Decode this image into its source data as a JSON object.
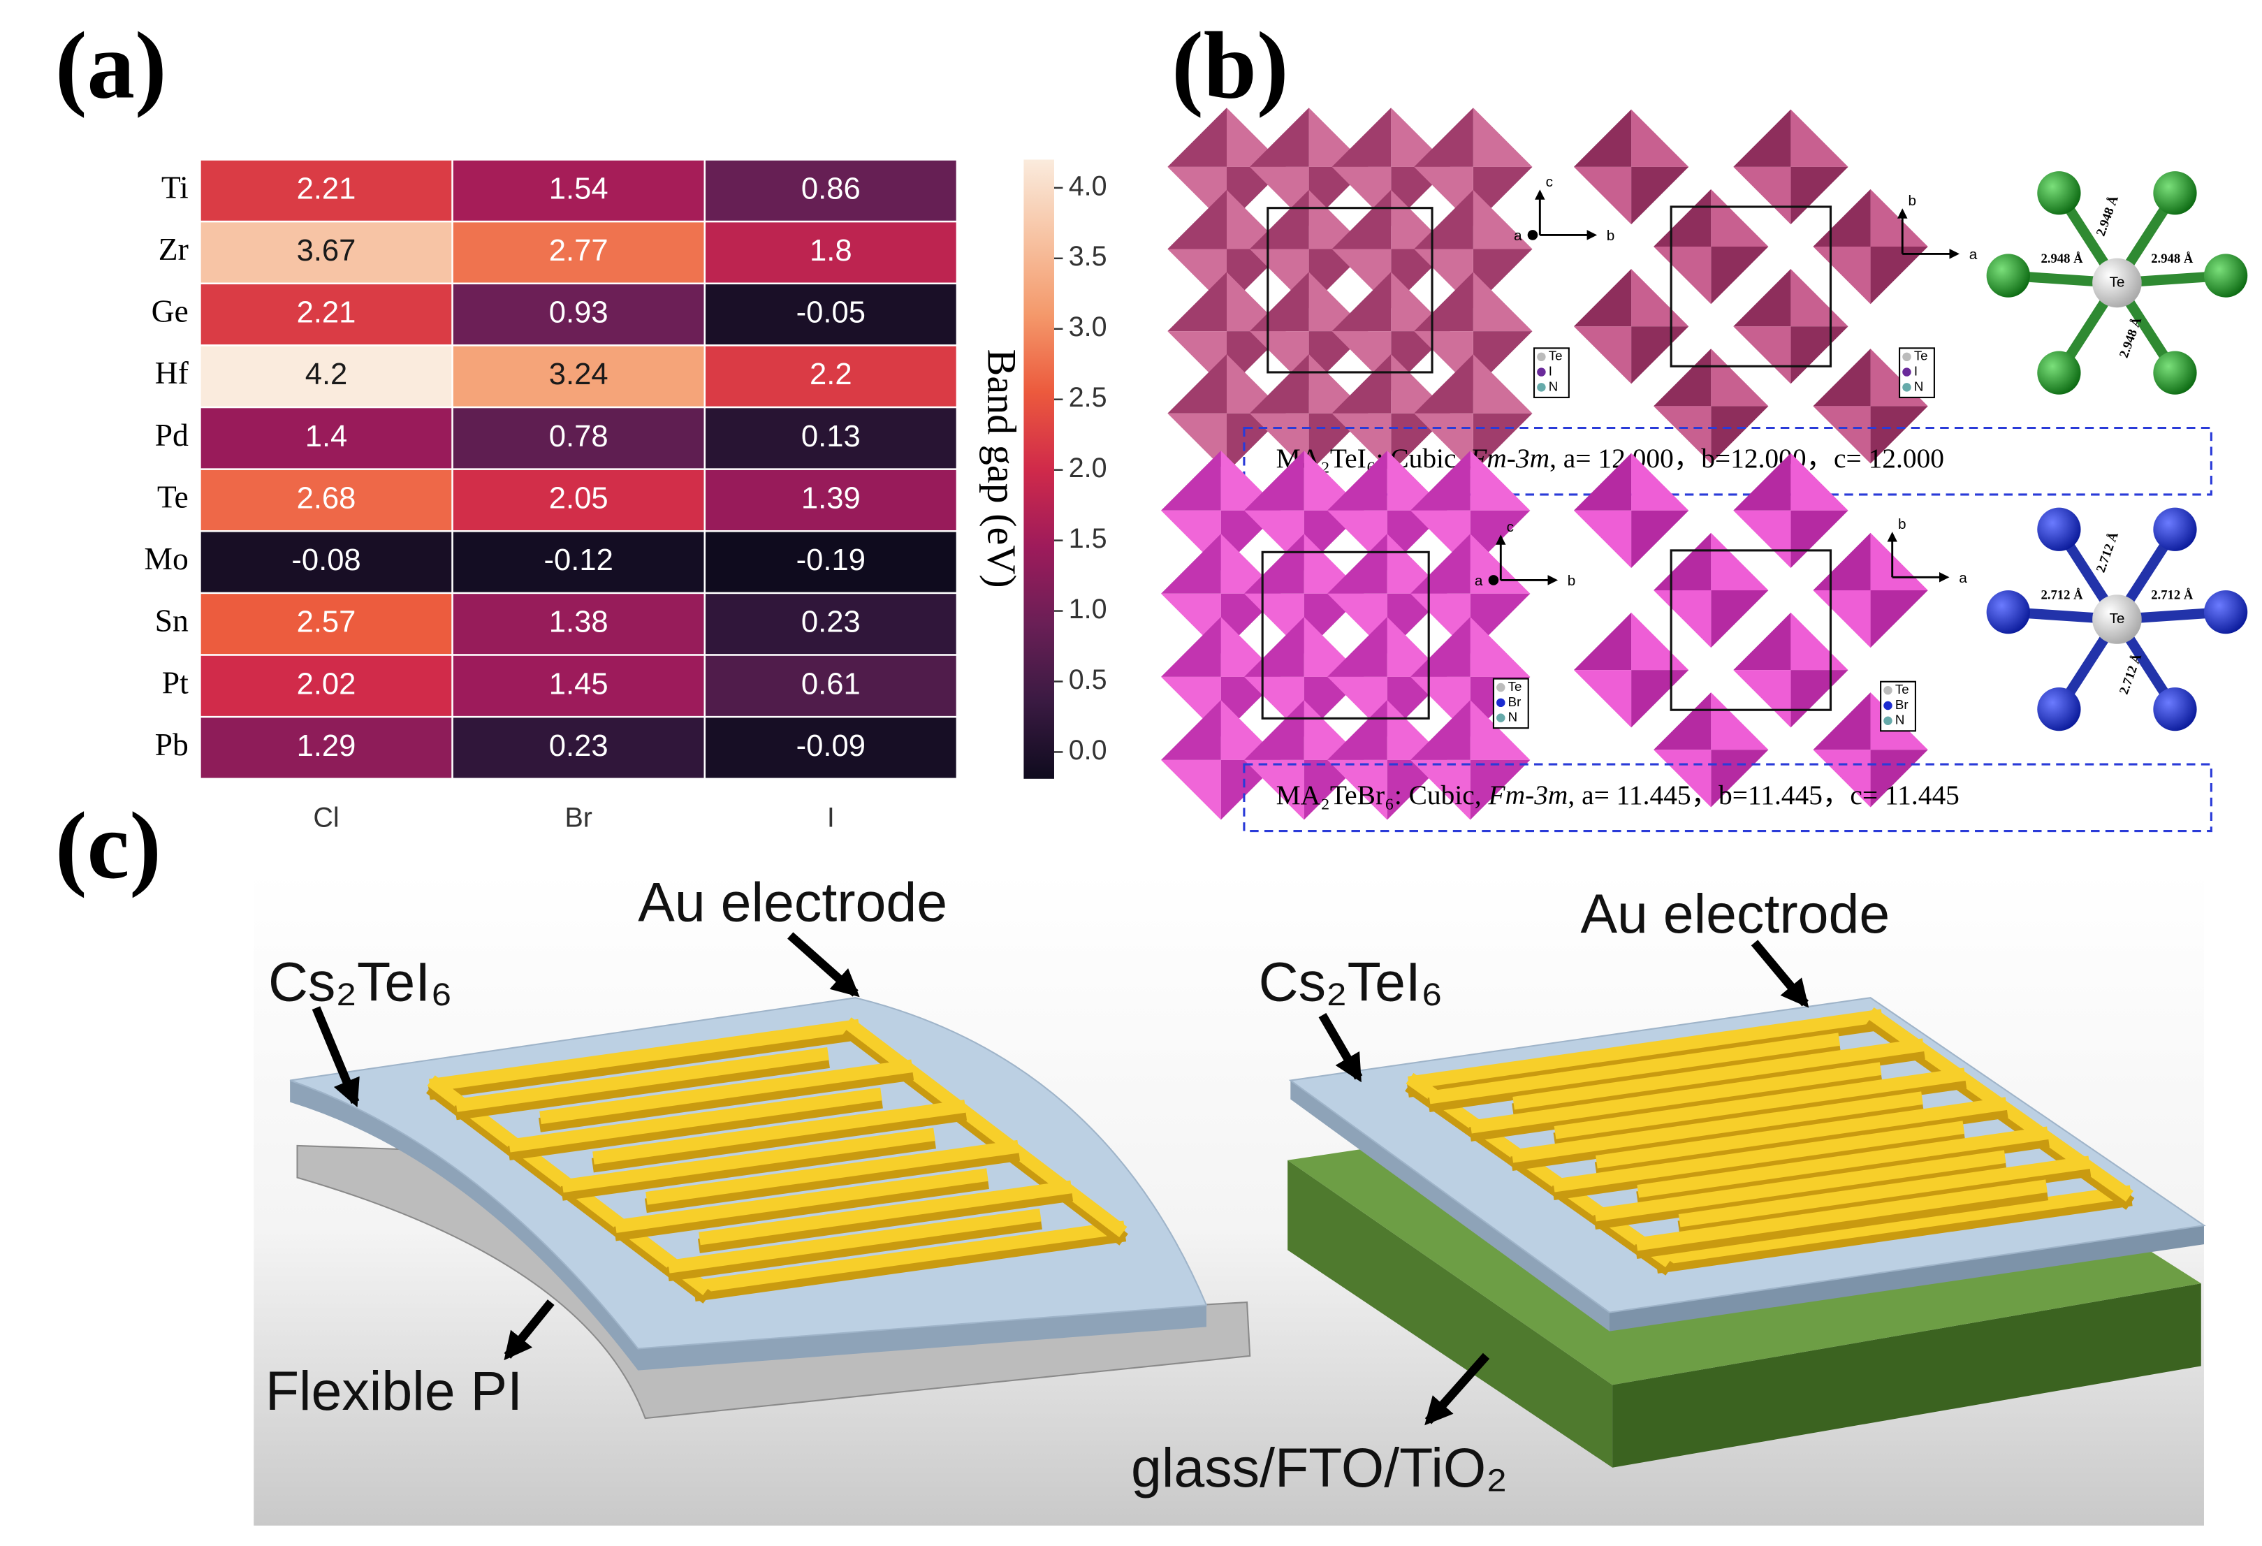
{
  "panel_labels": [
    "(a)",
    "(b)",
    "(c)"
  ],
  "chart_data": {
    "type": "heatmap",
    "rows": [
      "Ti",
      "Zr",
      "Ge",
      "Hf",
      "Pd",
      "Te",
      "Mo",
      "Sn",
      "Pt",
      "Pb"
    ],
    "columns": [
      "Cl",
      "Br",
      "I"
    ],
    "values": [
      [
        2.21,
        1.54,
        0.86
      ],
      [
        3.67,
        2.77,
        1.8
      ],
      [
        2.21,
        0.93,
        -0.05
      ],
      [
        4.2,
        3.24,
        2.2
      ],
      [
        1.4,
        0.78,
        0.13
      ],
      [
        2.68,
        2.05,
        1.39
      ],
      [
        -0.08,
        -0.12,
        -0.19
      ],
      [
        2.57,
        1.38,
        0.23
      ],
      [
        2.02,
        1.45,
        0.61
      ],
      [
        1.29,
        0.23,
        -0.09
      ]
    ],
    "colorbar": {
      "label": "Band gap (eV)",
      "lim": [
        -0.19,
        4.2
      ],
      "ticks": [
        {
          "value": 0,
          "label": "0.0"
        },
        {
          "value": 0.5,
          "label": "0.5"
        },
        {
          "value": 1,
          "label": "1.0"
        },
        {
          "value": 1.5,
          "label": "1.5"
        },
        {
          "value": 2,
          "label": "2.0"
        },
        {
          "value": 2.5,
          "label": "2.5"
        },
        {
          "value": 3,
          "label": "3.0"
        },
        {
          "value": 3.5,
          "label": "3.5"
        },
        {
          "value": 4,
          "label": "4.0"
        }
      ],
      "colors": [
        "#0f0b1e",
        "#3a1a42",
        "#6a1f56",
        "#9e1b5b",
        "#d02a4a",
        "#ec5a3d",
        "#f4996b",
        "#f7c3a3",
        "#faebdd"
      ]
    }
  },
  "panel_b": {
    "structures": [
      {
        "caption": [
          "MA₂TeI₆:   Cubic,   ",
          "Fm-3m",
          ",   a= 12.000，b=12.000，c= 12.000"
        ],
        "bond_length": "2.948 Å",
        "center_atom": "Te",
        "legend": [
          "Te",
          "I",
          "N"
        ],
        "axes_left": [
          "c",
          "a",
          "b"
        ],
        "axes_right": [
          "b",
          "a"
        ]
      },
      {
        "caption": [
          "MA₂TeBr₆:   Cubic,   ",
          "Fm-3m",
          ",   a= 11.445，b=11.445，c= 11.445"
        ],
        "bond_length": "2.712 Å",
        "center_atom": "Te",
        "legend": [
          "Te",
          "Br",
          "N"
        ],
        "axes_left": [
          "c",
          "a",
          "b"
        ],
        "axes_right": [
          "b",
          "a"
        ]
      }
    ]
  },
  "panel_c": {
    "left": {
      "electrode": "Au electrode",
      "film": "Cs₂TeI₆",
      "substrate": "Flexible PI"
    },
    "right": {
      "electrode": "Au electrode",
      "film": "Cs₂TeI₆",
      "substrate": "glass/FTO/TiO₂"
    }
  }
}
